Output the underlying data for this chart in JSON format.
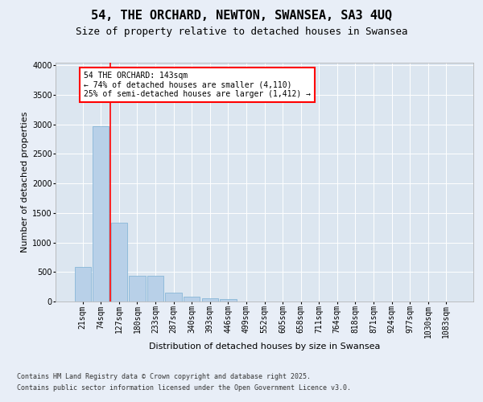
{
  "title": "54, THE ORCHARD, NEWTON, SWANSEA, SA3 4UQ",
  "subtitle": "Size of property relative to detached houses in Swansea",
  "xlabel": "Distribution of detached houses by size in Swansea",
  "ylabel": "Number of detached properties",
  "footer_line1": "Contains HM Land Registry data © Crown copyright and database right 2025.",
  "footer_line2": "Contains public sector information licensed under the Open Government Licence v3.0.",
  "categories": [
    "21sqm",
    "74sqm",
    "127sqm",
    "180sqm",
    "233sqm",
    "287sqm",
    "340sqm",
    "393sqm",
    "446sqm",
    "499sqm",
    "552sqm",
    "605sqm",
    "658sqm",
    "711sqm",
    "764sqm",
    "818sqm",
    "871sqm",
    "924sqm",
    "977sqm",
    "1030sqm",
    "1083sqm"
  ],
  "values": [
    580,
    2970,
    1340,
    430,
    430,
    155,
    75,
    55,
    40,
    0,
    0,
    0,
    0,
    0,
    0,
    0,
    0,
    0,
    0,
    0,
    0
  ],
  "bar_color": "#b8d0e8",
  "bar_edge_color": "#7aafd4",
  "vline_color": "red",
  "annotation_text": "54 THE ORCHARD: 143sqm\n← 74% of detached houses are smaller (4,110)\n25% of semi-detached houses are larger (1,412) →",
  "annotation_box_edge_color": "red",
  "annotation_box_facecolor": "white",
  "ylim": [
    0,
    4050
  ],
  "yticks": [
    0,
    500,
    1000,
    1500,
    2000,
    2500,
    3000,
    3500,
    4000
  ],
  "background_color": "#e8eef7",
  "plot_bg_color": "#dce6f0",
  "grid_color": "white",
  "title_fontsize": 11,
  "subtitle_fontsize": 9,
  "ylabel_fontsize": 8,
  "xlabel_fontsize": 8,
  "tick_fontsize": 7,
  "annotation_fontsize": 7,
  "footer_fontsize": 6
}
